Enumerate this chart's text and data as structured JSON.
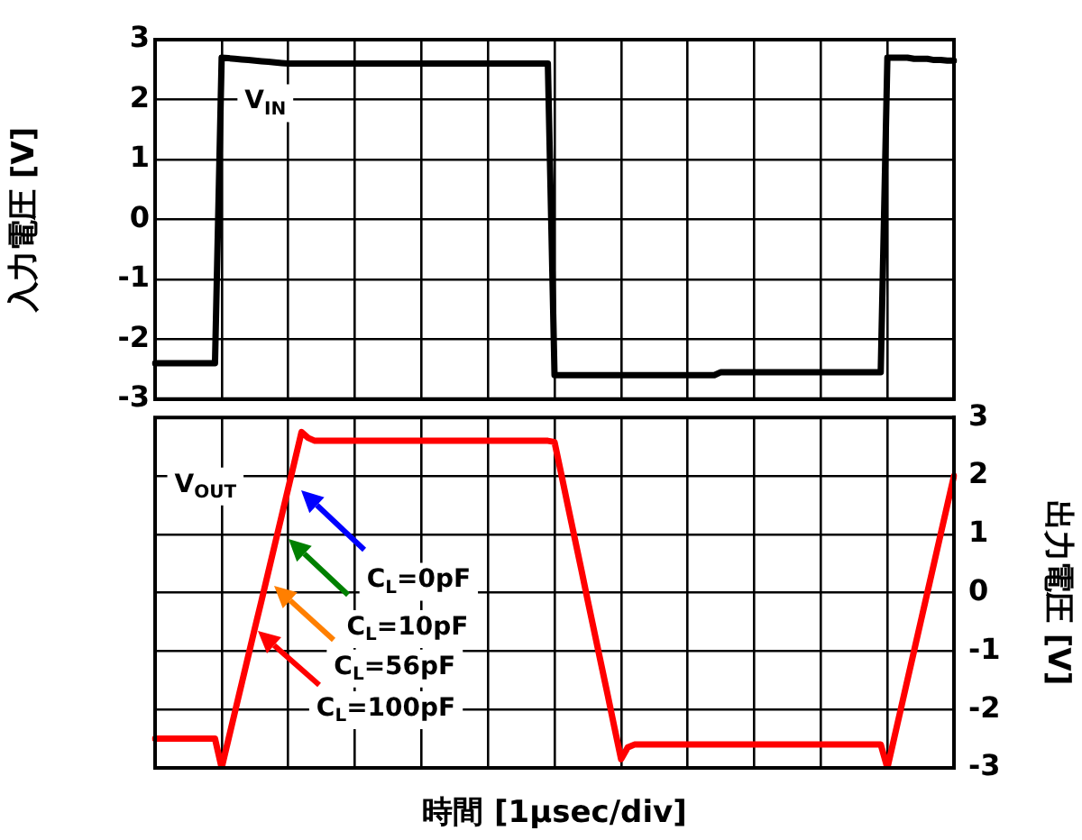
{
  "chart_data": [
    {
      "type": "line",
      "ylabel": "入力電圧 [V]",
      "categories": [
        null,
        null,
        null,
        null,
        null,
        null,
        null,
        null,
        null,
        null,
        null,
        null,
        null,
        null,
        null,
        null,
        null,
        null,
        null,
        null,
        null,
        null,
        null,
        null,
        null,
        null,
        null,
        null,
        null,
        null,
        null,
        null,
        null,
        null,
        null,
        null,
        null,
        null,
        null,
        null,
        null,
        null,
        null,
        null,
        null,
        null,
        null,
        null,
        null,
        null,
        null,
        null,
        null,
        null,
        null,
        null,
        null,
        null,
        null,
        null,
        null,
        null,
        null,
        null,
        null,
        null,
        null,
        null,
        null,
        null,
        null,
        null,
        null,
        null,
        null,
        null,
        null,
        null,
        null,
        null,
        null,
        null,
        null,
        null,
        null,
        null,
        null,
        null,
        null,
        null,
        null,
        null,
        null,
        null,
        null,
        null,
        null,
        null,
        null,
        null,
        null,
        null,
        null,
        null,
        null,
        null,
        null,
        null,
        null,
        null,
        null,
        null,
        null,
        null,
        null,
        null,
        null,
        null,
        null,
        null,
        null
      ],
      "ylim": [
        -3,
        3
      ],
      "yticks": [
        -3,
        -2,
        -1,
        0,
        1,
        2,
        3
      ],
      "grid": true,
      "marker": "none",
      "line_style": "solid",
      "series": [
        {
          "color": "#000000",
          "values": [
            -2.4,
            -2.4,
            -2.4,
            -2.4,
            -2.4,
            -2.4,
            -2.4,
            -2.4,
            -2.4,
            -2.4,
            2.7,
            2.69,
            2.68,
            2.67,
            2.66,
            2.65,
            2.64,
            2.63,
            2.62,
            2.61,
            2.6,
            2.6,
            2.6,
            2.6,
            2.6,
            2.6,
            2.6,
            2.6,
            2.6,
            2.6,
            2.6,
            2.6,
            2.6,
            2.6,
            2.6,
            2.6,
            2.6,
            2.6,
            2.6,
            2.6,
            2.6,
            2.6,
            2.6,
            2.6,
            2.6,
            2.6,
            2.6,
            2.6,
            2.6,
            2.6,
            2.6,
            2.6,
            2.6,
            2.6,
            2.6,
            2.6,
            2.6,
            2.6,
            2.6,
            2.6,
            -2.6,
            -2.6,
            -2.6,
            -2.6,
            -2.6,
            -2.6,
            -2.6,
            -2.6,
            -2.6,
            -2.6,
            -2.6,
            -2.6,
            -2.6,
            -2.6,
            -2.6,
            -2.6,
            -2.6,
            -2.6,
            -2.6,
            -2.6,
            -2.6,
            -2.6,
            -2.6,
            -2.6,
            -2.6,
            -2.55,
            -2.55,
            -2.55,
            -2.55,
            -2.55,
            -2.55,
            -2.55,
            -2.55,
            -2.55,
            -2.55,
            -2.55,
            -2.55,
            -2.55,
            -2.55,
            -2.55,
            -2.55,
            -2.55,
            -2.55,
            -2.55,
            -2.55,
            -2.55,
            -2.55,
            -2.55,
            -2.55,
            -2.55,
            2.7,
            2.7,
            2.7,
            2.7,
            2.68,
            2.68,
            2.68,
            2.66,
            2.66,
            2.65,
            2.65
          ]
        }
      ],
      "annotations": [
        "V$_{IN}$"
      ]
    },
    {
      "type": "line",
      "xlabel": "時間 [1μsec/div]",
      "y2label": "出力電圧 [V]",
      "categories": [
        null,
        null,
        null,
        null,
        null,
        null,
        null,
        null,
        null,
        null,
        null,
        null,
        null,
        null,
        null,
        null,
        null,
        null,
        null,
        null,
        null,
        null,
        null,
        null,
        null,
        null,
        null,
        null,
        null,
        null,
        null,
        null,
        null,
        null,
        null,
        null,
        null,
        null,
        null,
        null,
        null,
        null,
        null,
        null,
        null,
        null,
        null,
        null,
        null,
        null,
        null,
        null,
        null,
        null,
        null,
        null,
        null,
        null,
        null,
        null,
        null,
        null,
        null,
        null,
        null,
        null,
        null,
        null,
        null,
        null,
        null,
        null,
        null,
        null,
        null,
        null,
        null,
        null,
        null,
        null,
        null,
        null,
        null,
        null,
        null,
        null,
        null,
        null,
        null,
        null,
        null,
        null,
        null,
        null,
        null,
        null,
        null,
        null,
        null,
        null,
        null,
        null,
        null,
        null,
        null,
        null,
        null,
        null,
        null,
        null,
        null,
        null,
        null,
        null,
        null,
        null,
        null,
        null,
        null,
        null,
        null
      ],
      "ylim": [
        -3,
        3
      ],
      "yticks": [
        -3,
        -2,
        -1,
        0,
        1,
        2,
        3
      ],
      "grid": true,
      "marker": "none",
      "line_style": "solid",
      "series": [
        {
          "color": "#ff0000",
          "values": [
            -2.5,
            -2.5,
            -2.5,
            -2.5,
            -2.5,
            -2.5,
            -2.5,
            -2.5,
            -2.5,
            -2.5,
            -3.0,
            -2.52,
            -2.04,
            -1.56,
            -1.08,
            -0.6,
            -0.13,
            0.35,
            0.83,
            1.31,
            1.79,
            2.27,
            2.75,
            2.65,
            2.6,
            2.6,
            2.6,
            2.6,
            2.6,
            2.6,
            2.6,
            2.6,
            2.6,
            2.6,
            2.6,
            2.6,
            2.6,
            2.6,
            2.6,
            2.6,
            2.6,
            2.6,
            2.6,
            2.6,
            2.6,
            2.6,
            2.6,
            2.6,
            2.6,
            2.6,
            2.6,
            2.6,
            2.6,
            2.6,
            2.6,
            2.6,
            2.6,
            2.6,
            2.6,
            2.6,
            2.58,
            2.04,
            1.49,
            0.95,
            0.41,
            -0.14,
            -0.68,
            -1.22,
            -1.76,
            -2.31,
            -2.85,
            -2.65,
            -2.6,
            -2.6,
            -2.6,
            -2.6,
            -2.6,
            -2.6,
            -2.6,
            -2.6,
            -2.6,
            -2.6,
            -2.6,
            -2.6,
            -2.6,
            -2.6,
            -2.6,
            -2.6,
            -2.6,
            -2.6,
            -2.6,
            -2.6,
            -2.6,
            -2.6,
            -2.6,
            -2.6,
            -2.6,
            -2.6,
            -2.6,
            -2.6,
            -2.6,
            -2.6,
            -2.6,
            -2.6,
            -2.6,
            -2.6,
            -2.6,
            -2.6,
            -2.6,
            -2.6,
            -3.0,
            -2.5,
            -2.0,
            -1.5,
            -1.0,
            -0.5,
            0,
            0.5,
            1.0,
            1.5,
            2.0
          ]
        }
      ],
      "annotations": [
        "V$_{OUT}$",
        "C$_{L}$=0pF",
        "C$_{L}$=10pF",
        "C$_{L}$=56pF",
        "C$_{L}$=100pF"
      ]
    }
  ]
}
